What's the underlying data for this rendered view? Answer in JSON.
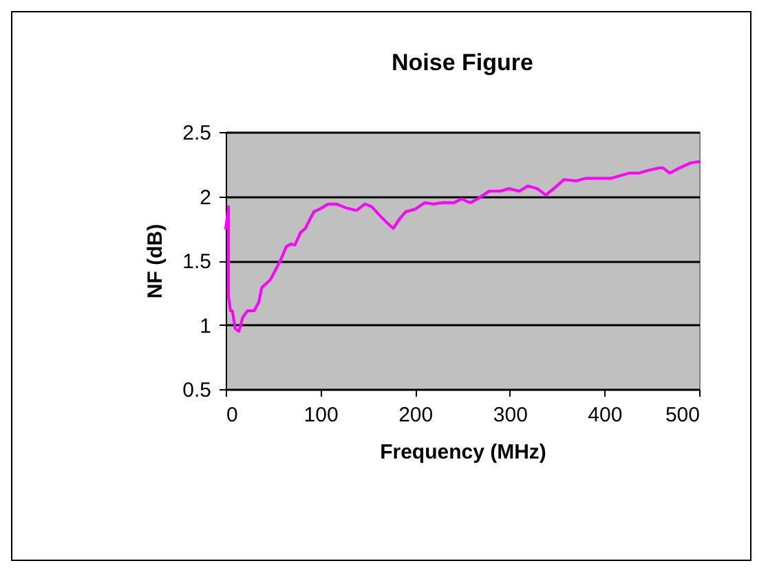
{
  "chart_data": {
    "type": "line",
    "title": "Noise Figure",
    "xlabel": "Frequency (MHz)",
    "ylabel": "NF (dB)",
    "xlim": [
      0,
      500
    ],
    "xticks": [
      0,
      100,
      200,
      300,
      400,
      500
    ],
    "ylim": [
      0.5,
      2.5
    ],
    "yticks": [
      0.5,
      1,
      1.5,
      2,
      2.5
    ],
    "grid": "y",
    "marker": "none",
    "line_style": "solid",
    "series": [
      {
        "color": "#ff00ff",
        "x": [
          0,
          3,
          3,
          5,
          7,
          10,
          14,
          18,
          23,
          30,
          35,
          38,
          47,
          57,
          64,
          69,
          73,
          79,
          84,
          93,
          99,
          108,
          117,
          127,
          138,
          147,
          154,
          164,
          171,
          177,
          183,
          190,
          200,
          210,
          219,
          229,
          241,
          249,
          258,
          266,
          278,
          290,
          299,
          310,
          319,
          329,
          338,
          348,
          357,
          370,
          380,
          407,
          416,
          426,
          436,
          445,
          457,
          462,
          469,
          479,
          491,
          500
        ],
        "values": [
          1.75,
          1.92,
          1.22,
          1.11,
          1.11,
          0.97,
          0.95,
          1.06,
          1.11,
          1.11,
          1.18,
          1.29,
          1.35,
          1.49,
          1.61,
          1.63,
          1.62,
          1.72,
          1.75,
          1.88,
          1.9,
          1.94,
          1.94,
          1.91,
          1.89,
          1.94,
          1.92,
          1.84,
          1.79,
          1.75,
          1.82,
          1.88,
          1.9,
          1.95,
          1.94,
          1.95,
          1.95,
          1.98,
          1.95,
          1.98,
          2.04,
          2.04,
          2.06,
          2.04,
          2.08,
          2.06,
          2.01,
          2.07,
          2.13,
          2.12,
          2.14,
          2.14,
          2.16,
          2.18,
          2.18,
          2.2,
          2.22,
          2.22,
          2.18,
          2.22,
          2.26,
          2.27
        ]
      }
    ]
  }
}
